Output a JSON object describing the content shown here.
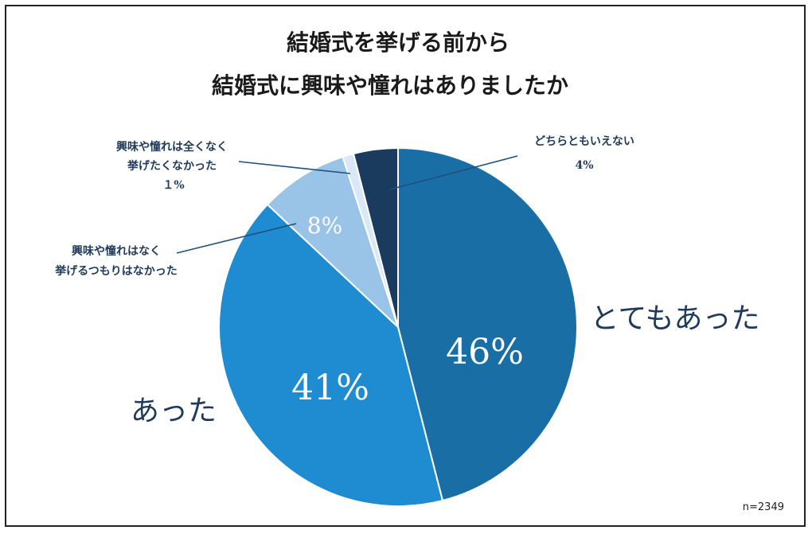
{
  "chart_data": {
    "type": "pie",
    "title_lines": [
      "結婚式を挙げる前から",
      "結婚式に興味や憧れはありましたか"
    ],
    "slices": [
      {
        "label": "とてもあった",
        "value": 46,
        "value_label": "46%",
        "color": "#1a6ea6"
      },
      {
        "label": "あった",
        "value": 41,
        "value_label": "41%",
        "color": "#1f8bd0"
      },
      {
        "label_lines": [
          "興味や憧れはなく",
          "挙げるつもりはなかった"
        ],
        "value": 8,
        "value_label": "8%",
        "color": "#9ac3e8"
      },
      {
        "label_lines": [
          "興味や憧れは全くなく",
          "挙げたくなかった"
        ],
        "value": 1,
        "value_label": "１%",
        "color": "#dae7f6"
      },
      {
        "label_lines": [
          "どちらともいえない"
        ],
        "value": 4,
        "value_label": "4%",
        "color": "#1a3a5e"
      }
    ],
    "sample_size": "n=2349",
    "start_angle": "12 o'clock",
    "direction": "clockwise"
  }
}
